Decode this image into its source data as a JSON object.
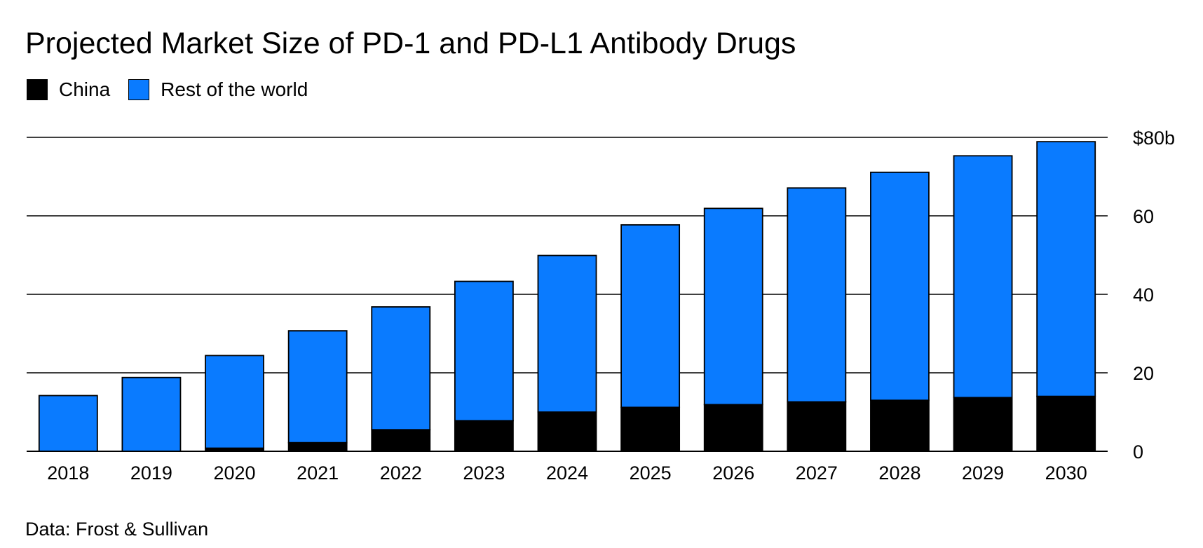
{
  "chart_data": {
    "type": "bar",
    "stacked": true,
    "title": "Projected Market Size of PD-1 and PD-L1 Antibody Drugs",
    "source": "Data: Frost & Sullivan",
    "categories": [
      "2018",
      "2019",
      "2020",
      "2021",
      "2022",
      "2023",
      "2024",
      "2025",
      "2026",
      "2027",
      "2028",
      "2029",
      "2030"
    ],
    "series": [
      {
        "name": "China",
        "color": "#000000",
        "values": [
          0,
          0,
          0.8,
          2.2,
          5.5,
          7.8,
          10.0,
          11.2,
          11.9,
          12.6,
          13.0,
          13.7,
          14.0
        ]
      },
      {
        "name": "Rest of the world",
        "color": "#0a7bff",
        "values": [
          14.2,
          18.8,
          23.6,
          28.5,
          31.3,
          35.5,
          39.9,
          46.5,
          50.0,
          54.5,
          58.1,
          61.6,
          64.9
        ]
      }
    ],
    "ylim": [
      0,
      80
    ],
    "yticks": [
      0,
      20,
      40,
      60,
      80
    ],
    "ytick_labels": [
      "0",
      "20",
      "40",
      "60",
      "$80b"
    ],
    "y_axis_side": "right",
    "grid": true,
    "legend_position": "top-left"
  }
}
